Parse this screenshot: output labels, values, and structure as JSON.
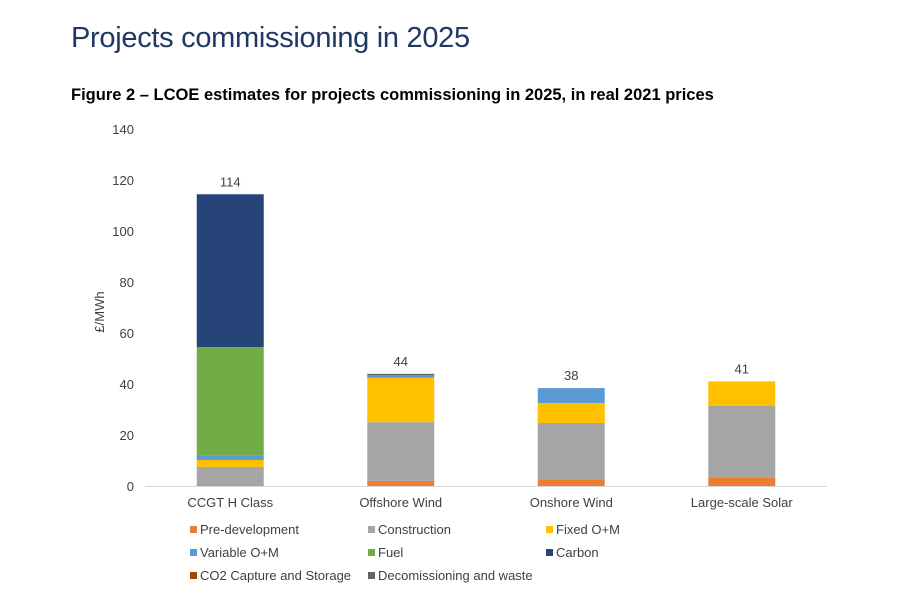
{
  "page": {
    "heading": "Projects commissioning in 2025",
    "figure_title": "Figure 2 – LCOE estimates for projects commissioning in 2025, in real 2021 prices"
  },
  "chart_data": {
    "type": "bar",
    "stacked": true,
    "title": "Figure 2 – LCOE estimates for projects commissioning in 2025, in real 2021 prices",
    "xlabel": "",
    "ylabel": "£/MWh",
    "ylim": [
      0,
      140
    ],
    "yticks": [
      0,
      20,
      40,
      60,
      80,
      100,
      120,
      140
    ],
    "grid": false,
    "legend_position": "bottom",
    "categories": [
      "CCGT H Class",
      "Offshore Wind",
      "Onshore Wind",
      "Large-scale Solar"
    ],
    "totals": [
      114,
      44,
      38,
      41
    ],
    "total_labels": [
      "114",
      "44",
      "38",
      "41"
    ],
    "series": [
      {
        "name": "Pre-development",
        "color": "#ed7d31",
        "values": [
          0.2,
          2.0,
          2.5,
          3.3
        ]
      },
      {
        "name": "Construction",
        "color": "#a5a5a5",
        "values": [
          7.3,
          23.0,
          22.2,
          28.1
        ]
      },
      {
        "name": "Fixed O+M",
        "color": "#ffc000",
        "values": [
          2.7,
          17.4,
          7.8,
          9.6
        ]
      },
      {
        "name": "Variable O+M",
        "color": "#5b9bd5",
        "values": [
          1.6,
          1.0,
          5.9,
          0
        ]
      },
      {
        "name": "Fuel",
        "color": "#70ad47",
        "values": [
          42.7,
          0,
          0,
          0
        ]
      },
      {
        "name": "Carbon",
        "color": "#264478",
        "values": [
          59.9,
          0,
          0,
          0
        ]
      },
      {
        "name": "CO2 Capture and Storage",
        "color": "#9e480e",
        "values": [
          0,
          0,
          0,
          0
        ]
      },
      {
        "name": "Decomissioning and waste",
        "color": "#636363",
        "values": [
          0,
          0.6,
          0,
          0
        ]
      }
    ]
  }
}
